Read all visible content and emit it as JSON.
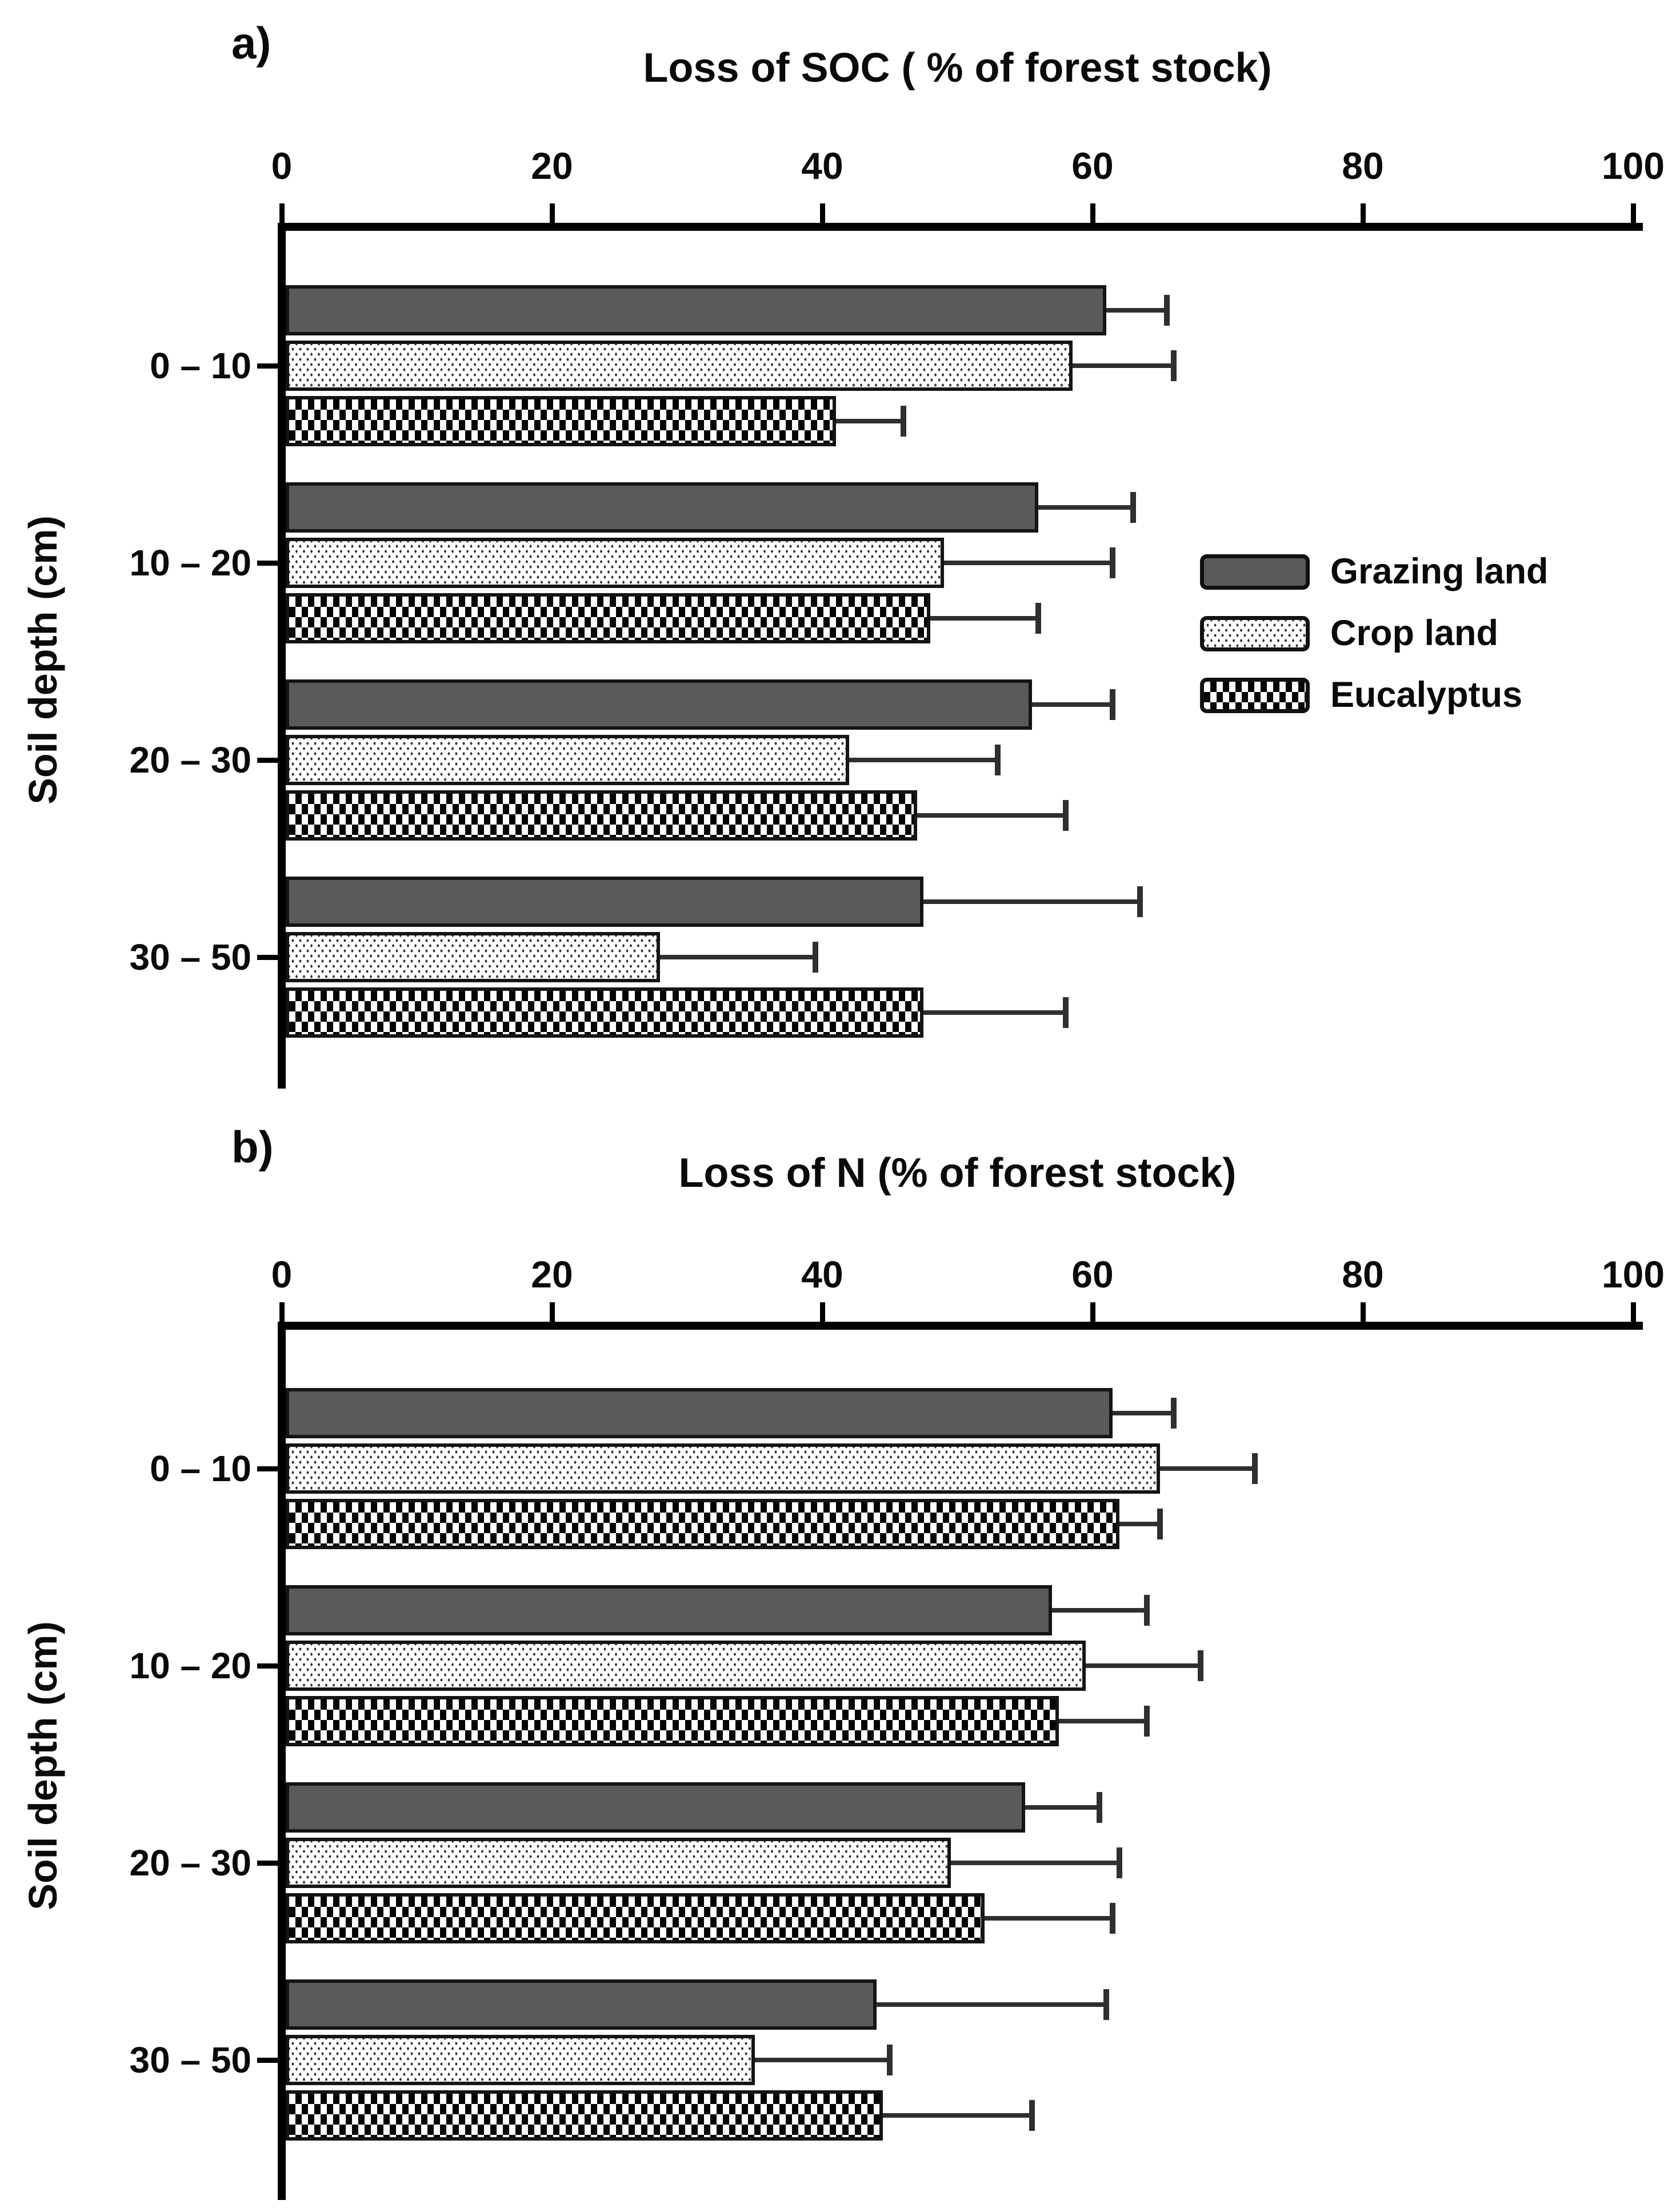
{
  "figure": {
    "panel_a_label": "a)",
    "panel_b_label": "b)",
    "ylabel": "Soil depth (cm)",
    "legend": {
      "items": [
        {
          "label": "Grazing land",
          "pattern": "solid-dark-gray",
          "color": "#5a5a5a"
        },
        {
          "label": "Crop land",
          "pattern": "dotted",
          "color": "#ffffff"
        },
        {
          "label": "Eucalyptus",
          "pattern": "checkerboard",
          "color": "#000000"
        }
      ]
    }
  },
  "chart_data": [
    {
      "id": "a",
      "type": "bar",
      "orientation": "horizontal",
      "title": "Loss of SOC ( % of forest stock)",
      "xlabel_position": "top",
      "xlim": [
        0,
        100
      ],
      "xticks": [
        0,
        20,
        40,
        60,
        80,
        100
      ],
      "ylabel": "Soil depth (cm)",
      "categories": [
        "0 – 10",
        "10 – 20",
        "20 – 30",
        "30 – 50"
      ],
      "grid": false,
      "legend_position": "right-middle",
      "series": [
        {
          "name": "Grazing land",
          "values": [
            61,
            56,
            55.5,
            47.5
          ],
          "errors_plus": [
            4.5,
            7,
            6,
            16
          ]
        },
        {
          "name": "Crop land",
          "values": [
            58.5,
            49,
            42,
            28
          ],
          "errors_plus": [
            7.5,
            12.5,
            11,
            11.5
          ]
        },
        {
          "name": "Eucalyptus",
          "values": [
            41,
            48,
            47,
            47.5
          ],
          "errors_plus": [
            5,
            8,
            11,
            10.5
          ]
        }
      ]
    },
    {
      "id": "b",
      "type": "bar",
      "orientation": "horizontal",
      "title": "Loss of N (% of forest stock)",
      "xlabel_position": "top",
      "xlim": [
        0,
        100
      ],
      "xticks": [
        0,
        20,
        40,
        60,
        80,
        100
      ],
      "ylabel": "Soil depth (cm)",
      "categories": [
        "0 – 10",
        "10 – 20",
        "20 – 30",
        "30 – 50"
      ],
      "grid": false,
      "series": [
        {
          "name": "Grazing land",
          "values": [
            61.5,
            57,
            55,
            44
          ],
          "errors_plus": [
            4.5,
            7,
            5.5,
            17
          ]
        },
        {
          "name": "Crop land",
          "values": [
            65,
            59.5,
            49.5,
            35
          ],
          "errors_plus": [
            7,
            8.5,
            12.5,
            10
          ]
        },
        {
          "name": "Eucalyptus",
          "values": [
            62,
            57.5,
            52,
            44.5
          ],
          "errors_plus": [
            3,
            6.5,
            9.5,
            11
          ]
        }
      ]
    }
  ]
}
